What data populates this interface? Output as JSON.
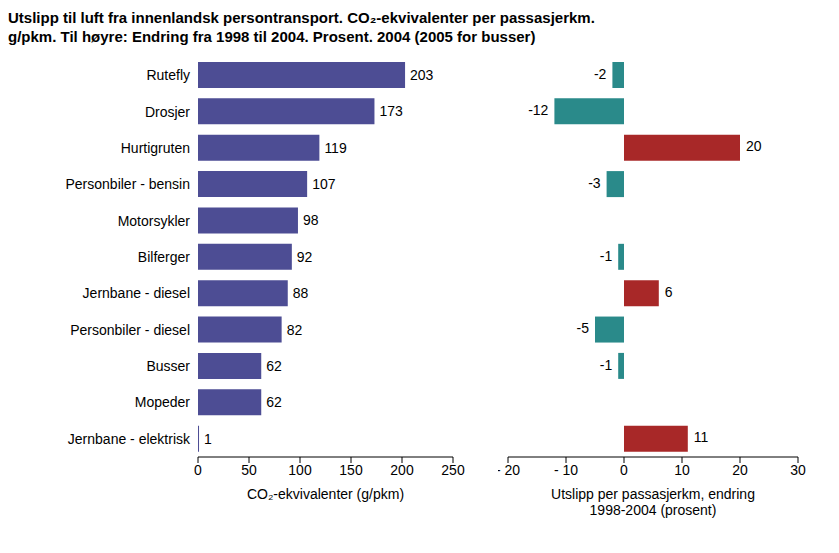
{
  "chart_data": [
    {
      "type": "bar",
      "title": "Utslipp til luft fra innenlandsk persontransport. CO₂-ekvivalenter per passasjerkm. g/pkm. Til høyre: Endring fra 1998 til 2004. Prosent. 2004 (2005 for busser)",
      "orientation": "horizontal",
      "categories": [
        "Rutefly",
        "Drosjer",
        "Hurtigruten",
        "Personbiler - bensin",
        "Motorsykler",
        "Bilferger",
        "Jernbane - diesel",
        "Personbiler - diesel",
        "Busser",
        "Mopeder",
        "Jernbane - elektrisk"
      ],
      "values": [
        203,
        173,
        119,
        107,
        98,
        92,
        88,
        82,
        62,
        62,
        1
      ],
      "color": "#4d4d94",
      "x_label": "CO₂-ekvivalenter (g/pkm)",
      "xlim": [
        0,
        250
      ],
      "xticks": [
        0,
        50,
        100,
        150,
        200,
        250
      ],
      "data_labels": true,
      "grid": false
    },
    {
      "type": "bar",
      "orientation": "horizontal",
      "categories": [
        "Rutefly",
        "Drosjer",
        "Hurtigruten",
        "Personbiler - bensin",
        "Motorsykler",
        "Bilferger",
        "Jernbane - diesel",
        "Personbiler - diesel",
        "Busser",
        "Mopeder",
        "Jernbane - elektrisk"
      ],
      "values": [
        -2,
        -12,
        20,
        -3,
        0,
        -1,
        6,
        -5,
        -1,
        0,
        11
      ],
      "colors": [
        "#2a8a8a",
        "#2a8a8a",
        "#a82828",
        "#2a8a8a",
        "#2a8a8a",
        "#2a8a8a",
        "#a82828",
        "#2a8a8a",
        "#2a8a8a",
        "#2a8a8a",
        "#a82828"
      ],
      "x_label": "Utslipp per passasjerkm, endring 1998-2004 (prosent)",
      "xlim": [
        -20,
        30
      ],
      "xticks": [
        {
          "value": -20,
          "label": "- 20"
        },
        {
          "value": -10,
          "label": "- 10"
        },
        0,
        10,
        20,
        30
      ],
      "data_labels": true,
      "tick_labels": "x",
      "grid": false
    }
  ]
}
